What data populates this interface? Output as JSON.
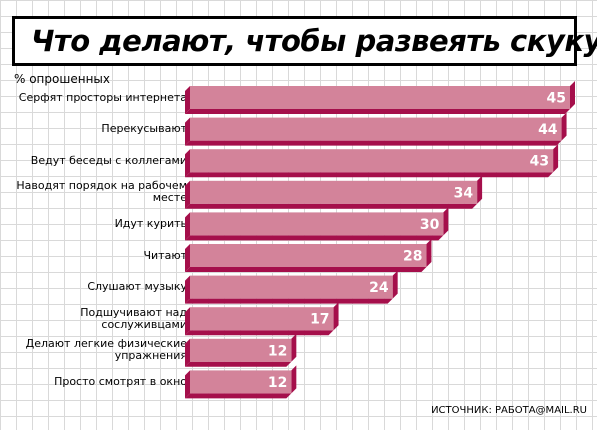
{
  "title": "Что делают, чтобы развеять скуку",
  "subtitle": "% опрошенных",
  "source": "ИСТОЧНИК: РАБОТА@MAIL.RU",
  "colors": {
    "bar_face": "#d3839a",
    "bar_edge": "#a50f4b"
  },
  "chart_data": {
    "type": "bar",
    "orientation": "horizontal",
    "categories": [
      "Серфят просторы интернета",
      "Перекусывают",
      "Ведут беседы с коллегами",
      "Наводят порядок на рабочем месте",
      "Идут курить",
      "Читают",
      "Слушают музыку",
      "Подшучивают над сослуживцами",
      "Делают легкие физические упражнения",
      "Просто смотрят в окно"
    ],
    "values": [
      45,
      44,
      43,
      34,
      30,
      28,
      24,
      17,
      12,
      12
    ],
    "title": "Что делают, чтобы развеять скуку",
    "ylabel": "% опрошенных",
    "xlim": [
      0,
      45
    ],
    "grid": false
  }
}
